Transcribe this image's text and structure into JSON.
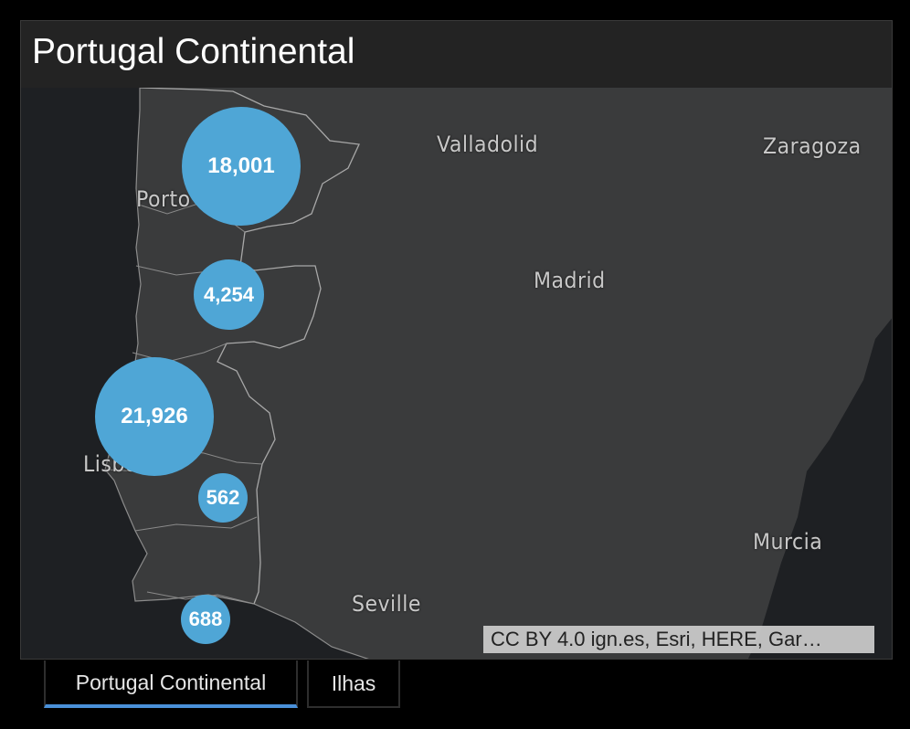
{
  "panel": {
    "title": "Portugal Continental"
  },
  "map": {
    "cities": [
      {
        "name": "Valladolid"
      },
      {
        "name": "Zaragoza"
      },
      {
        "name": "Porto"
      },
      {
        "name": "Madrid"
      },
      {
        "name": "Lisbon"
      },
      {
        "name": "Murcia"
      },
      {
        "name": "Seville"
      }
    ],
    "clusters": [
      {
        "label": "18,001",
        "value": 18001
      },
      {
        "label": "4,254",
        "value": 4254
      },
      {
        "label": "21,926",
        "value": 21926
      },
      {
        "label": "562",
        "value": 562
      },
      {
        "label": "688",
        "value": 688
      }
    ],
    "attribution": "CC BY 4.0 ign.es, Esri, HERE, Gar…"
  },
  "tabs": [
    {
      "label": "Portugal Continental",
      "active": true
    },
    {
      "label": "Ilhas",
      "active": false
    }
  ],
  "colors": {
    "background": "#000000",
    "panel": "#232323",
    "ocean": "#1e2023",
    "land": "#3a3b3c",
    "cluster": "#4fa6d6",
    "tab_accent": "#4a90d9"
  }
}
